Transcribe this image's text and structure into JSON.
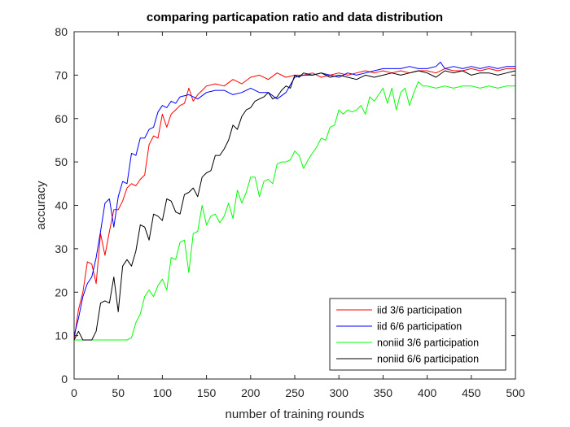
{
  "chart_data": {
    "type": "line",
    "title": "comparing particapation ratio and data distribution",
    "xlabel": "number of training rounds",
    "ylabel": "accuracy",
    "xlim": [
      0,
      500
    ],
    "ylim": [
      0,
      80
    ],
    "xticks": [
      0,
      50,
      100,
      150,
      200,
      250,
      300,
      350,
      400,
      450,
      500
    ],
    "yticks": [
      0,
      10,
      20,
      30,
      40,
      50,
      60,
      70,
      80
    ],
    "xtick_labels": [
      "0",
      "50",
      "100",
      "150",
      "200",
      "250",
      "300",
      "350",
      "400",
      "450",
      "500"
    ],
    "ytick_labels": [
      "0",
      "10",
      "20",
      "30",
      "40",
      "50",
      "60",
      "70",
      "80"
    ],
    "grid": false,
    "legend_position": "bottom-right",
    "series": [
      {
        "name": "iid 3/6 participation",
        "color": "#ff0000",
        "x": [
          0,
          5,
          10,
          15,
          20,
          25,
          30,
          35,
          40,
          45,
          50,
          55,
          60,
          65,
          70,
          75,
          80,
          85,
          90,
          95,
          100,
          105,
          110,
          115,
          120,
          125,
          130,
          135,
          140,
          145,
          150,
          160,
          170,
          180,
          190,
          200,
          210,
          220,
          230,
          240,
          250,
          260,
          270,
          280,
          290,
          300,
          310,
          320,
          330,
          340,
          350,
          360,
          370,
          380,
          390,
          400,
          410,
          420,
          430,
          440,
          450,
          460,
          470,
          480,
          490,
          500
        ],
        "y": [
          9,
          16,
          20,
          27,
          26.5,
          22,
          33.5,
          28.5,
          34,
          39,
          39,
          41,
          44,
          45,
          44.5,
          46,
          47,
          54,
          56,
          55.5,
          61,
          58,
          61,
          62,
          63,
          63.5,
          67,
          64,
          65.5,
          66.5,
          67.5,
          68,
          67.5,
          69,
          68,
          69.5,
          70,
          69,
          70.5,
          69.5,
          70,
          70,
          70.5,
          69.5,
          70,
          70.5,
          70,
          70.5,
          71,
          70.5,
          71,
          70.5,
          71,
          70.5,
          71,
          71,
          70.5,
          71.5,
          71,
          71,
          71.5,
          71,
          71.5,
          71,
          71.5,
          71.5
        ]
      },
      {
        "name": "iid 6/6 participation",
        "color": "#0000ff",
        "x": [
          0,
          5,
          10,
          15,
          20,
          25,
          30,
          35,
          40,
          45,
          50,
          55,
          60,
          65,
          70,
          75,
          80,
          85,
          90,
          95,
          100,
          105,
          110,
          115,
          120,
          130,
          140,
          150,
          160,
          170,
          180,
          190,
          200,
          210,
          220,
          230,
          240,
          250,
          260,
          270,
          280,
          290,
          300,
          310,
          320,
          330,
          340,
          350,
          360,
          370,
          380,
          390,
          400,
          410,
          415,
          420,
          430,
          440,
          450,
          460,
          470,
          480,
          490,
          500
        ],
        "y": [
          10,
          14,
          19,
          22,
          23.5,
          28,
          34,
          40.5,
          41.5,
          35,
          42,
          45.5,
          45,
          52,
          51.5,
          55.5,
          55.5,
          57.5,
          58,
          61.5,
          63,
          62.5,
          64,
          63.5,
          65,
          65.5,
          64.5,
          66,
          66.5,
          66.5,
          65.5,
          66,
          67,
          66,
          66,
          64.5,
          66,
          69.5,
          70,
          70,
          70.5,
          70,
          69.5,
          70.5,
          70,
          70.5,
          71,
          71.5,
          71.5,
          71.5,
          72,
          71.5,
          71.5,
          72,
          73,
          71.5,
          72,
          71.5,
          72,
          71.5,
          72,
          71.5,
          72,
          72
        ]
      },
      {
        "name": "noniid 3/6 participation",
        "color": "#00ff00",
        "x": [
          0,
          10,
          20,
          30,
          40,
          50,
          55,
          60,
          65,
          70,
          75,
          80,
          85,
          90,
          95,
          100,
          105,
          110,
          115,
          120,
          125,
          130,
          135,
          140,
          145,
          150,
          155,
          160,
          165,
          170,
          175,
          180,
          185,
          190,
          195,
          200,
          205,
          210,
          215,
          220,
          225,
          230,
          235,
          240,
          245,
          250,
          255,
          260,
          265,
          270,
          275,
          280,
          285,
          290,
          295,
          300,
          305,
          310,
          315,
          320,
          325,
          330,
          335,
          340,
          345,
          350,
          355,
          360,
          365,
          370,
          375,
          380,
          385,
          390,
          395,
          400,
          410,
          420,
          430,
          440,
          450,
          460,
          470,
          480,
          490,
          500
        ],
        "y": [
          9,
          9,
          9,
          9,
          9,
          9,
          9,
          9,
          9.5,
          13,
          15,
          19,
          20.5,
          19,
          21.5,
          23,
          20.5,
          28,
          27.5,
          31.5,
          32,
          24.5,
          33.5,
          34,
          40,
          35.5,
          37.5,
          38,
          36,
          37.5,
          40.5,
          37,
          43.5,
          40.5,
          43,
          46.5,
          46.5,
          42,
          45.5,
          46,
          45,
          49.5,
          50,
          50,
          50.5,
          52.5,
          51.5,
          48.5,
          50.5,
          52,
          53.5,
          55.5,
          55,
          58,
          58.5,
          62,
          61,
          62,
          61.5,
          62,
          63,
          61,
          65,
          64,
          65.5,
          67,
          63.5,
          67,
          62,
          66,
          67,
          63,
          66,
          68.5,
          67.5,
          67.5,
          67,
          67.5,
          67,
          67.5,
          67.5,
          67,
          67.5,
          67,
          67.5,
          67.5
        ]
      },
      {
        "name": "noniid 6/6 participation",
        "color": "#000000",
        "x": [
          0,
          5,
          10,
          15,
          20,
          25,
          30,
          35,
          40,
          45,
          50,
          55,
          60,
          65,
          70,
          75,
          80,
          85,
          90,
          95,
          100,
          105,
          110,
          115,
          120,
          125,
          130,
          135,
          140,
          145,
          150,
          155,
          160,
          165,
          170,
          175,
          180,
          185,
          190,
          195,
          200,
          205,
          210,
          215,
          220,
          225,
          230,
          235,
          240,
          245,
          250,
          255,
          260,
          270,
          280,
          290,
          300,
          310,
          320,
          330,
          340,
          350,
          360,
          370,
          380,
          390,
          400,
          410,
          420,
          430,
          440,
          450,
          460,
          470,
          480,
          490,
          500
        ],
        "y": [
          9,
          11,
          9,
          9,
          9,
          11,
          17.5,
          18,
          17.5,
          23.5,
          15.5,
          26,
          27.5,
          26,
          29.5,
          35.5,
          35,
          32,
          38,
          37.5,
          36.5,
          41.5,
          41,
          38.5,
          38,
          42.5,
          43,
          44,
          42,
          46.5,
          47.5,
          48,
          51.5,
          51.5,
          53,
          55,
          58.5,
          57.5,
          60.5,
          62,
          62.5,
          64,
          64.5,
          65,
          66,
          64.5,
          65,
          66.5,
          67.5,
          67,
          70,
          69.5,
          70.5,
          70,
          70.5,
          69.5,
          70,
          69.5,
          69,
          70,
          69.5,
          70,
          70.5,
          70,
          70.5,
          71,
          70.5,
          69.5,
          71,
          70.5,
          71,
          70,
          70.5,
          70.5,
          70,
          70.5,
          71
        ]
      }
    ]
  }
}
